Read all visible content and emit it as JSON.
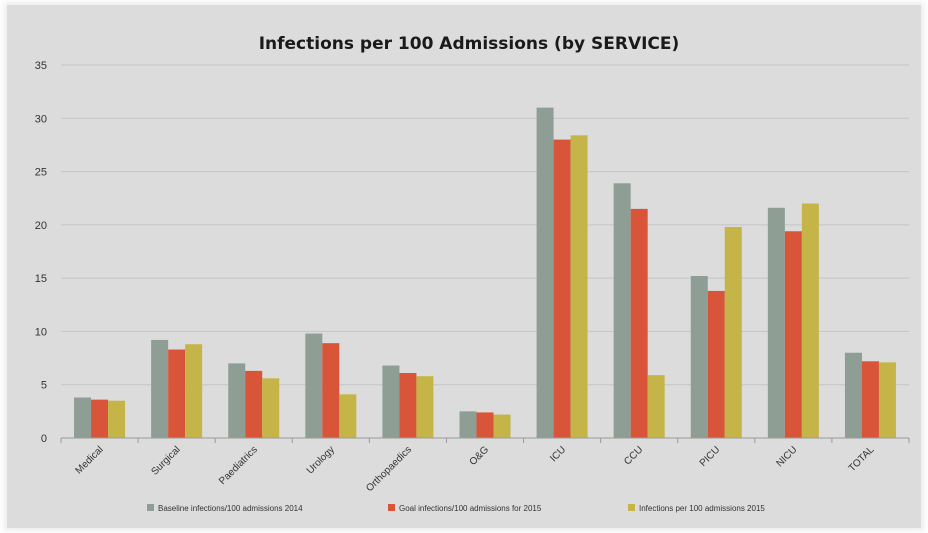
{
  "chart_data": {
    "type": "bar",
    "title": "Infections per 100 Admissions (by SERVICE)",
    "xlabel": "",
    "ylabel": "",
    "ylim": [
      0,
      35
    ],
    "yticks": [
      0,
      5,
      10,
      15,
      20,
      25,
      30,
      35
    ],
    "grid": true,
    "legend_position": "bottom",
    "categories": [
      "Medical",
      "Surgical",
      "Paediatrics",
      "Urology",
      "Orthopaedics",
      "O&G",
      "ICU",
      "CCU",
      "PICU",
      "NICU",
      "TOTAL"
    ],
    "series": [
      {
        "name": "Baseline infections/100 admissions 2014",
        "color": "#8e9e94",
        "values": [
          3.8,
          9.2,
          7.0,
          9.8,
          6.8,
          2.5,
          31.0,
          23.9,
          15.2,
          21.6,
          8.0
        ]
      },
      {
        "name": "Goal infections/100 admissions for 2015",
        "color": "#d9553a",
        "values": [
          3.6,
          8.3,
          6.3,
          8.9,
          6.1,
          2.4,
          28.0,
          21.5,
          13.8,
          19.4,
          7.2
        ]
      },
      {
        "name": "Infections per 100 admissions 2015",
        "color": "#c5b548",
        "values": [
          3.5,
          8.8,
          5.6,
          4.1,
          5.8,
          2.2,
          28.4,
          5.9,
          19.8,
          22.0,
          7.1
        ]
      }
    ]
  }
}
